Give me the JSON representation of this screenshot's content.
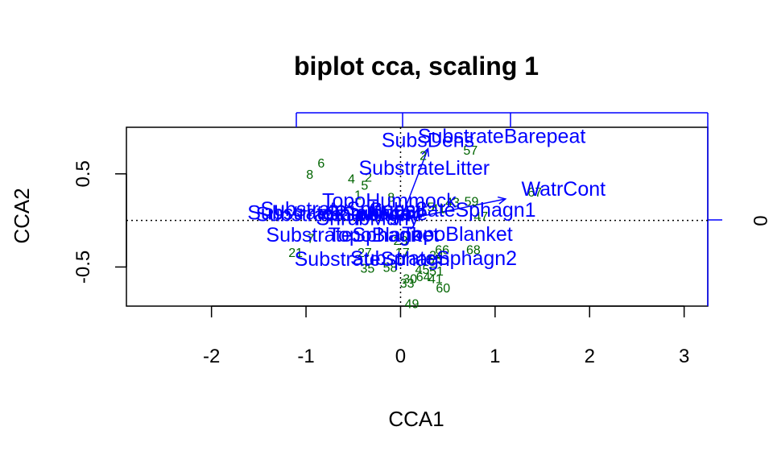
{
  "chart_data": {
    "type": "scatter",
    "title": "biplot cca, scaling 1",
    "xlabel": "CCA1",
    "ylabel": "CCA2",
    "xlim": [
      -2.9,
      3.25
    ],
    "ylim": [
      -0.92,
      1.0
    ],
    "x_ticks": [
      "-2",
      "-1",
      "0",
      "1",
      "2",
      "3"
    ],
    "x_tick_values": [
      -2,
      -1,
      0,
      1,
      2,
      3
    ],
    "y_ticks": [
      "-0.5",
      "0.5"
    ],
    "y_tick_values": [
      -0.5,
      0.5
    ],
    "secondary_right_tick": "0",
    "reference_lines": {
      "x": 0,
      "y": 0,
      "style": "dotted"
    },
    "colors": {
      "sites": "#006400",
      "environment": "#0000ff",
      "axes": "#000000",
      "secondary_axes": "#0000ff"
    },
    "sites": [
      {
        "label": "2",
        "x": 0.24,
        "y": 0.7
      },
      {
        "label": "57",
        "x": 0.74,
        "y": 0.76
      },
      {
        "label": "6",
        "x": -0.84,
        "y": 0.62
      },
      {
        "label": "8",
        "x": -0.96,
        "y": 0.5
      },
      {
        "label": "4",
        "x": -0.52,
        "y": 0.45
      },
      {
        "label": "2",
        "x": -0.34,
        "y": 0.47
      },
      {
        "label": "5",
        "x": -0.38,
        "y": 0.38
      },
      {
        "label": "1",
        "x": -0.45,
        "y": 0.28
      },
      {
        "label": "8",
        "x": -0.1,
        "y": 0.25
      },
      {
        "label": "67",
        "x": 1.42,
        "y": 0.31
      },
      {
        "label": "43",
        "x": 0.55,
        "y": 0.2
      },
      {
        "label": "59",
        "x": 0.75,
        "y": 0.21
      },
      {
        "label": "5",
        "x": 0.32,
        "y": 0.15
      },
      {
        "label": "41",
        "x": 0.4,
        "y": 0.13
      },
      {
        "label": "47",
        "x": 0.85,
        "y": 0.05
      },
      {
        "label": "21",
        "x": -1.11,
        "y": -0.34
      },
      {
        "label": "7",
        "x": -0.95,
        "y": -0.19
      },
      {
        "label": "23",
        "x": 0.0,
        "y": -0.21
      },
      {
        "label": "66",
        "x": 0.44,
        "y": -0.31
      },
      {
        "label": "68",
        "x": 0.77,
        "y": -0.31
      },
      {
        "label": "34",
        "x": 0.38,
        "y": -0.37
      },
      {
        "label": "27",
        "x": -0.38,
        "y": -0.34
      },
      {
        "label": "17",
        "x": 0.02,
        "y": -0.34
      },
      {
        "label": "55",
        "x": 0.36,
        "y": -0.41
      },
      {
        "label": "35",
        "x": -0.35,
        "y": -0.51
      },
      {
        "label": "58",
        "x": -0.11,
        "y": -0.5
      },
      {
        "label": "45",
        "x": 0.23,
        "y": -0.52
      },
      {
        "label": "30",
        "x": 0.1,
        "y": -0.62
      },
      {
        "label": "51",
        "x": 0.38,
        "y": -0.54
      },
      {
        "label": "64",
        "x": 0.24,
        "y": -0.6
      },
      {
        "label": "41",
        "x": 0.37,
        "y": -0.62
      },
      {
        "label": "33",
        "x": 0.07,
        "y": -0.67
      },
      {
        "label": "60",
        "x": 0.45,
        "y": -0.72
      },
      {
        "label": "49",
        "x": 0.12,
        "y": -0.89
      }
    ],
    "environment_vectors": [
      {
        "label": "WatrCont",
        "x": 1.11,
        "y": 0.23,
        "arrow": true
      },
      {
        "label": "SubsDens",
        "x": 0.29,
        "y": 0.77,
        "arrow": true
      },
      {
        "label": "SubstrateBarepeat",
        "x": 1.07,
        "y": 0.9,
        "arrow": false
      },
      {
        "label": "SubstrateLitter",
        "x": 0.25,
        "y": 0.56,
        "arrow": false
      },
      {
        "label": "TopoHummock",
        "x": -0.12,
        "y": 0.21,
        "arrow": false
      },
      {
        "label": "SubstrateSphagn1",
        "x": 0.55,
        "y": 0.11,
        "arrow": false
      },
      {
        "label": "SubstrateSphagn3",
        "x": -0.6,
        "y": 0.12,
        "arrow": false
      },
      {
        "label": "SubstrateSphagn4",
        "x": -0.65,
        "y": 0.06,
        "arrow": false
      },
      {
        "label": "ShrubNone",
        "x": -0.25,
        "y": 0.07,
        "arrow": false
      },
      {
        "label": "ShrubMany",
        "x": -0.35,
        "y": 0.02,
        "arrow": false
      },
      {
        "label": "SubstrateInterface",
        "x": -0.75,
        "y": 0.08,
        "arrow": false
      },
      {
        "label": "TopoBlanket",
        "x": -0.18,
        "y": -0.16,
        "arrow": false
      },
      {
        "label": "SubstrateSphagn",
        "x": -0.6,
        "y": -0.16,
        "arrow": false
      },
      {
        "label": "TopoBlanket",
        "x": 0.6,
        "y": -0.15,
        "arrow": false
      },
      {
        "label": "SubstrateSphagn2",
        "x": 0.35,
        "y": -0.41,
        "arrow": false
      },
      {
        "label": "SubstrateSphagn",
        "x": -0.3,
        "y": -0.42,
        "arrow": false
      }
    ]
  }
}
